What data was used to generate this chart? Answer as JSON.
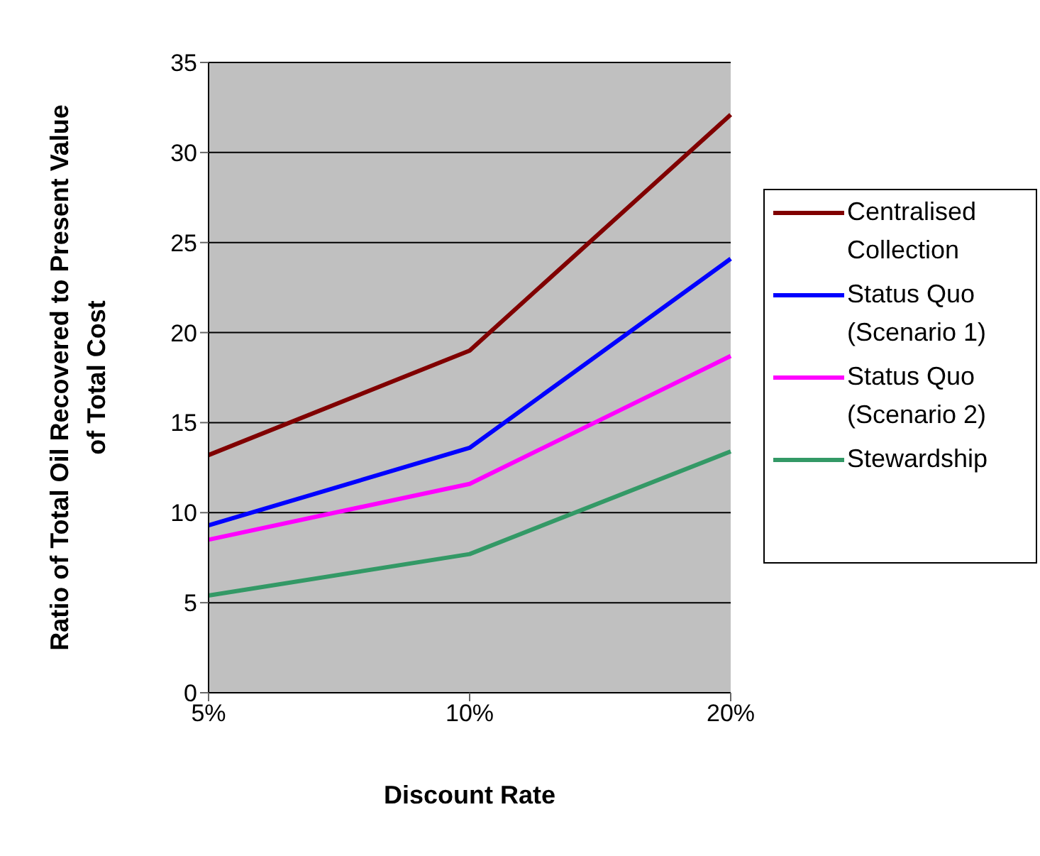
{
  "chart_data": {
    "type": "line",
    "xlabel": "Discount Rate",
    "ylabel": "Ratio of Total Oil Recovered to Present Value of Total Cost",
    "categories": [
      "5%",
      "10%",
      "20%"
    ],
    "series": [
      {
        "name": "Centralised Collection",
        "color": "#800000",
        "values": [
          13.2,
          19.0,
          32.1
        ]
      },
      {
        "name": "Status Quo (Scenario 1)",
        "color": "#0000ff",
        "values": [
          9.3,
          13.6,
          24.1
        ]
      },
      {
        "name": "Status Quo (Scenario 2)",
        "color": "#ff00ff",
        "values": [
          8.5,
          11.6,
          18.7
        ]
      },
      {
        "name": "Stewardship",
        "color": "#339966",
        "values": [
          5.4,
          7.7,
          13.4
        ]
      }
    ],
    "ylim": [
      0,
      35
    ],
    "yticks": [
      0,
      5,
      10,
      15,
      20,
      25,
      30,
      35
    ],
    "grid": "y",
    "legend": "right",
    "marker": "none",
    "line_style": "solid"
  }
}
